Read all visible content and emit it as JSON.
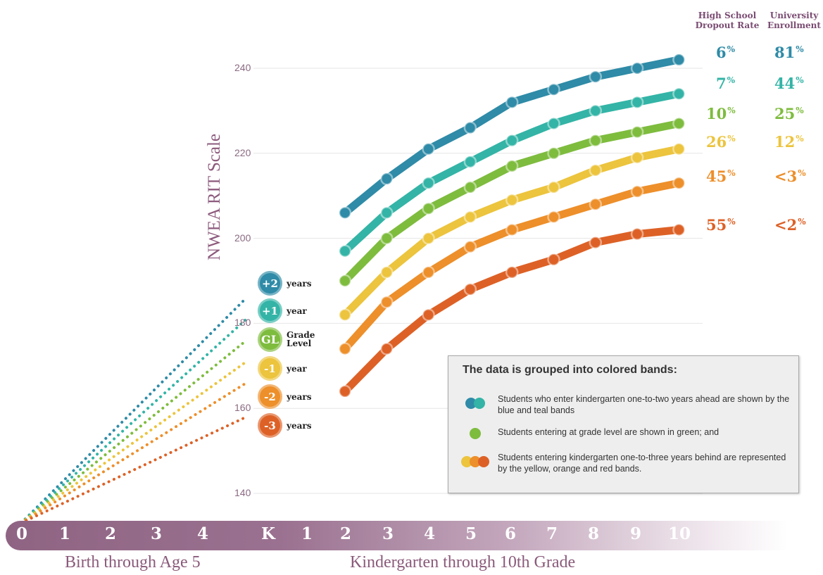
{
  "chart_data": {
    "type": "line",
    "ylabel": "NWEA RIT Scale",
    "yticks": [
      140,
      160,
      180,
      200,
      220,
      240
    ],
    "ylim": [
      137,
      245
    ],
    "x": [
      "2",
      "3",
      "4",
      "5",
      "6",
      "7",
      "8",
      "9",
      "10"
    ],
    "series": [
      {
        "color": "#2f8ba7",
        "values": [
          206,
          214,
          221,
          226,
          232,
          235,
          238,
          240,
          242
        ],
        "early_start": 186
      },
      {
        "color": "#33b4a6",
        "values": [
          197,
          206,
          213,
          218,
          223,
          227,
          230,
          232,
          234
        ],
        "early_start": 181
      },
      {
        "color": "#7ebc3e",
        "values": [
          190,
          200,
          207,
          212,
          217,
          220,
          223,
          225,
          227
        ],
        "early_start": 176
      },
      {
        "color": "#ecc43d",
        "values": [
          182,
          192,
          200,
          205,
          209,
          212,
          216,
          219,
          221
        ],
        "early_start": 171
      },
      {
        "color": "#ed8f2a",
        "values": [
          174,
          185,
          192,
          198,
          202,
          205,
          208,
          211,
          213
        ],
        "early_start": 166
      },
      {
        "color": "#dd6126",
        "values": [
          164,
          174,
          182,
          188,
          192,
          195,
          199,
          201,
          202
        ],
        "early_start": 158
      }
    ],
    "early_start_value": 135
  },
  "headers": {
    "dropout": [
      "High School",
      "Dropout Rate"
    ],
    "enrollment": [
      "University",
      "Enrollment"
    ]
  },
  "stats": [
    {
      "dropout": "6",
      "enrollment": "81",
      "color": "#2f8ba7"
    },
    {
      "dropout": "7",
      "enrollment": "44",
      "color": "#33b4a6"
    },
    {
      "dropout": "10",
      "enrollment": "25",
      "color": "#7ebc3e"
    },
    {
      "dropout": "26",
      "enrollment": "12",
      "color": "#ecc43d"
    },
    {
      "dropout": "45",
      "enrollment": "<3",
      "color": "#ed8f2a"
    },
    {
      "dropout": "55",
      "enrollment": "<2",
      "color": "#dd6126"
    }
  ],
  "percent_sign": "%",
  "badges": [
    {
      "num": "+2",
      "line1": "years",
      "line2": "",
      "color": "#2f8ba7"
    },
    {
      "num": "+1",
      "line1": "year",
      "line2": "",
      "color": "#33b4a6"
    },
    {
      "num": "GL",
      "line1": "Grade",
      "line2": "Level",
      "color": "#7ebc3e"
    },
    {
      "num": "-1",
      "line1": "year",
      "line2": "",
      "color": "#ecc43d"
    },
    {
      "num": "-2",
      "line1": "years",
      "line2": "",
      "color": "#ed8f2a"
    },
    {
      "num": "-3",
      "line1": "years",
      "line2": "",
      "color": "#dd6126"
    }
  ],
  "legend": {
    "title": "The data is grouped into colored bands:",
    "rows": [
      {
        "dots": [
          "#2f8ba7",
          "#33b4a6"
        ],
        "text": "Students who enter kindergarten one-to-two years ahead are shown by the blue and teal bands"
      },
      {
        "dots": [
          "#7ebc3e"
        ],
        "text": "Students entering at grade level are shown in green; and"
      },
      {
        "dots": [
          "#ecc43d",
          "#ed8f2a",
          "#dd6126"
        ],
        "text": "Students entering kindergarten one-to-three years behind are represented by the yellow, orange and red bands."
      }
    ]
  },
  "timeline": {
    "labels": [
      "0",
      "1",
      "2",
      "3",
      "4",
      "K",
      "1",
      "2",
      "3",
      "4",
      "5",
      "6",
      "7",
      "8",
      "9",
      "10"
    ],
    "caption_left": "Birth through Age 5",
    "caption_right": "Kindergarten through 10th Grade"
  }
}
